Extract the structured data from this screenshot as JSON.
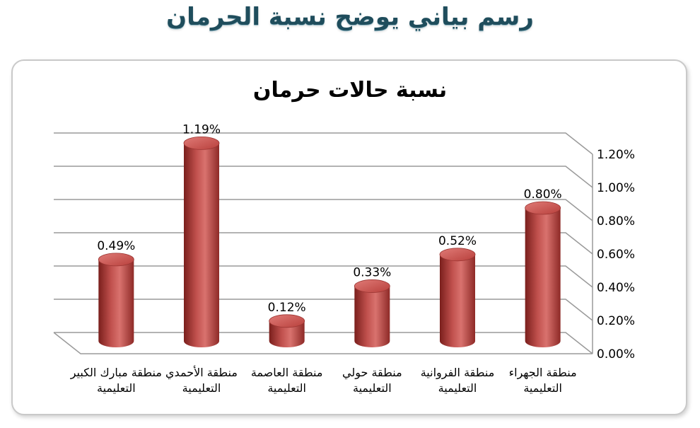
{
  "page": {
    "title": "رسم بياني يوضح نسبة الحرمان"
  },
  "chart_data": {
    "type": "bar",
    "title": "نسبة حالات حرمان",
    "categories": [
      "منطقة الجهراء التعليمية",
      "منطقة الفروانية التعليمية",
      "منطقة حولي التعليمية",
      "منطقة العاصمة التعليمية",
      "منطقة الأحمدي التعليمية",
      "منطقة مبارك الكبير التعليمية"
    ],
    "values": [
      0.8,
      0.52,
      0.33,
      0.12,
      1.19,
      0.49
    ],
    "value_labels": [
      "0.80%",
      "0.52%",
      "0.33%",
      "0.12%",
      "1.19%",
      "0.49%"
    ],
    "ylim": [
      0,
      1.2
    ],
    "y_ticks": [
      "0.00%",
      "0.20%",
      "0.40%",
      "0.60%",
      "0.80%",
      "1.00%",
      "1.20%"
    ],
    "y_axis_side": "right",
    "category_order": "right-to-left",
    "grid": true,
    "bar_shape": "cylinder",
    "bar_color": "#c0504d",
    "legend": false
  }
}
